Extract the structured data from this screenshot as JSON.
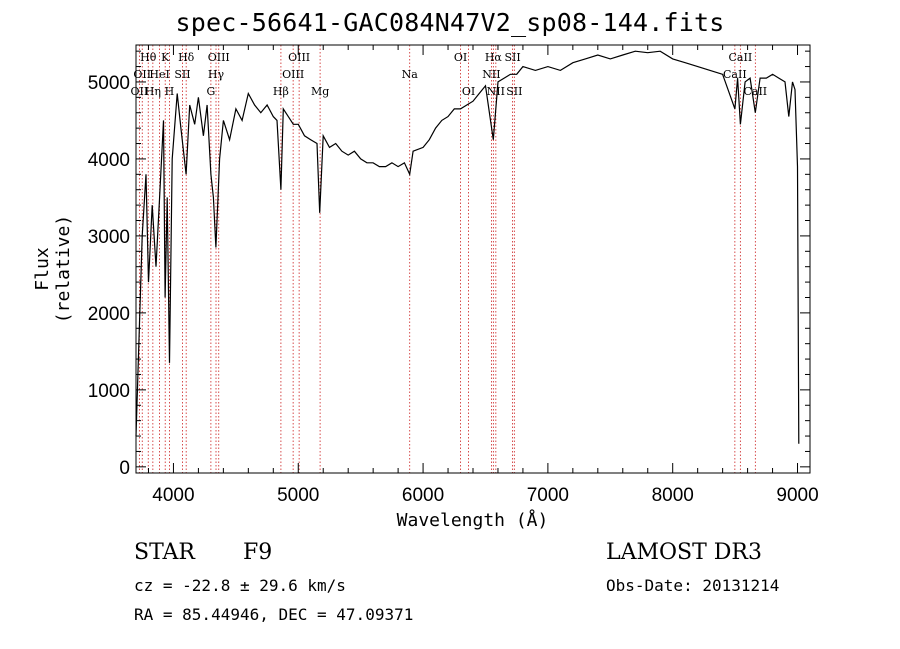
{
  "title": "spec-56641-GAC084N47V2_sp08-144.fits",
  "info": {
    "class": "STAR",
    "subclass": "F9",
    "survey": "LAMOST DR3",
    "cz": "cz = -22.8 ± 29.6 km/s",
    "obs_date": "Obs-Date: 20131214",
    "radec": "RA =  85.44946, DEC =  47.09371"
  },
  "colors": {
    "spectrum": "#000000",
    "lines": "#cc2222",
    "axes": "#000000"
  },
  "chart_data": {
    "type": "line",
    "xlabel": "Wavelength (Å)",
    "ylabel": "Flux (relative)",
    "xlim": [
      3700,
      9100
    ],
    "ylim": [
      -80,
      5480
    ],
    "xticks": [
      4000,
      5000,
      6000,
      7000,
      8000,
      9000
    ],
    "yticks": [
      0,
      1000,
      2000,
      3000,
      4000,
      5000
    ],
    "spectrum": [
      [
        3700,
        400
      ],
      [
        3750,
        3000
      ],
      [
        3780,
        3800
      ],
      [
        3800,
        2400
      ],
      [
        3830,
        3400
      ],
      [
        3860,
        2600
      ],
      [
        3889,
        3500
      ],
      [
        3920,
        4500
      ],
      [
        3933,
        2200
      ],
      [
        3950,
        3500
      ],
      [
        3968,
        1350
      ],
      [
        3990,
        4000
      ],
      [
        4030,
        4850
      ],
      [
        4060,
        4400
      ],
      [
        4101,
        3800
      ],
      [
        4130,
        4700
      ],
      [
        4170,
        4450
      ],
      [
        4200,
        4800
      ],
      [
        4240,
        4300
      ],
      [
        4270,
        4700
      ],
      [
        4300,
        3800
      ],
      [
        4320,
        3500
      ],
      [
        4340,
        2850
      ],
      [
        4370,
        4000
      ],
      [
        4400,
        4500
      ],
      [
        4450,
        4250
      ],
      [
        4500,
        4650
      ],
      [
        4550,
        4500
      ],
      [
        4600,
        4850
      ],
      [
        4650,
        4700
      ],
      [
        4700,
        4600
      ],
      [
        4750,
        4700
      ],
      [
        4800,
        4550
      ],
      [
        4830,
        4500
      ],
      [
        4861,
        3600
      ],
      [
        4880,
        4650
      ],
      [
        4920,
        4550
      ],
      [
        4960,
        4450
      ],
      [
        5000,
        4450
      ],
      [
        5050,
        4300
      ],
      [
        5100,
        4250
      ],
      [
        5150,
        4200
      ],
      [
        5172,
        3300
      ],
      [
        5200,
        4300
      ],
      [
        5250,
        4150
      ],
      [
        5300,
        4200
      ],
      [
        5350,
        4100
      ],
      [
        5400,
        4050
      ],
      [
        5450,
        4100
      ],
      [
        5500,
        4000
      ],
      [
        5550,
        3950
      ],
      [
        5600,
        3950
      ],
      [
        5650,
        3900
      ],
      [
        5700,
        3900
      ],
      [
        5750,
        3950
      ],
      [
        5800,
        3900
      ],
      [
        5850,
        3950
      ],
      [
        5893,
        3800
      ],
      [
        5920,
        4100
      ],
      [
        6000,
        4150
      ],
      [
        6050,
        4250
      ],
      [
        6100,
        4400
      ],
      [
        6150,
        4500
      ],
      [
        6200,
        4550
      ],
      [
        6250,
        4650
      ],
      [
        6300,
        4650
      ],
      [
        6350,
        4700
      ],
      [
        6400,
        4750
      ],
      [
        6450,
        4850
      ],
      [
        6500,
        4950
      ],
      [
        6563,
        4250
      ],
      [
        6600,
        5000
      ],
      [
        6650,
        5050
      ],
      [
        6700,
        5100
      ],
      [
        6750,
        5100
      ],
      [
        6800,
        5200
      ],
      [
        6900,
        5150
      ],
      [
        7000,
        5200
      ],
      [
        7100,
        5150
      ],
      [
        7200,
        5250
      ],
      [
        7300,
        5300
      ],
      [
        7400,
        5350
      ],
      [
        7500,
        5300
      ],
      [
        7600,
        5350
      ],
      [
        7700,
        5400
      ],
      [
        7800,
        5380
      ],
      [
        7900,
        5400
      ],
      [
        8000,
        5300
      ],
      [
        8100,
        5250
      ],
      [
        8200,
        5200
      ],
      [
        8300,
        5150
      ],
      [
        8400,
        5100
      ],
      [
        8498,
        4650
      ],
      [
        8520,
        5050
      ],
      [
        8542,
        4450
      ],
      [
        8580,
        5000
      ],
      [
        8620,
        5050
      ],
      [
        8662,
        4600
      ],
      [
        8700,
        5050
      ],
      [
        8750,
        5050
      ],
      [
        8800,
        5100
      ],
      [
        8850,
        5050
      ],
      [
        8900,
        5000
      ],
      [
        8930,
        4550
      ],
      [
        8960,
        5000
      ],
      [
        8980,
        4900
      ],
      [
        9000,
        3900
      ],
      [
        9010,
        300
      ]
    ],
    "line_markers": [
      {
        "wavelength": 3727,
        "label": "OII",
        "row": 3
      },
      {
        "wavelength": 3750,
        "label": "OII",
        "row": 2
      },
      {
        "wavelength": 3798,
        "label": "Hθ",
        "row": 1
      },
      {
        "wavelength": 3835,
        "label": "Hη",
        "row": 3
      },
      {
        "wavelength": 3889,
        "label": "HeI",
        "row": 2
      },
      {
        "wavelength": 3934,
        "label": "K",
        "row": 1
      },
      {
        "wavelength": 3968,
        "label": "H",
        "row": 3
      },
      {
        "wavelength": 4072,
        "label": "SII",
        "row": 2
      },
      {
        "wavelength": 4102,
        "label": "Hδ",
        "row": 1
      },
      {
        "wavelength": 4300,
        "label": "G",
        "row": 3
      },
      {
        "wavelength": 4341,
        "label": "Hγ",
        "row": 2
      },
      {
        "wavelength": 4363,
        "label": "OIII",
        "row": 1
      },
      {
        "wavelength": 4861,
        "label": "Hβ",
        "row": 3
      },
      {
        "wavelength": 4959,
        "label": "OIII",
        "row": 2
      },
      {
        "wavelength": 5007,
        "label": "OIII",
        "row": 1
      },
      {
        "wavelength": 5175,
        "label": "Mg",
        "row": 3
      },
      {
        "wavelength": 5893,
        "label": "Na",
        "row": 2
      },
      {
        "wavelength": 6300,
        "label": "OI",
        "row": 1
      },
      {
        "wavelength": 6364,
        "label": "OI",
        "row": 3
      },
      {
        "wavelength": 6548,
        "label": "NII",
        "row": 2
      },
      {
        "wavelength": 6563,
        "label": "Hα",
        "row": 1
      },
      {
        "wavelength": 6583,
        "label": "NII",
        "row": 3
      },
      {
        "wavelength": 6717,
        "label": "SII",
        "row": 1
      },
      {
        "wavelength": 6731,
        "label": "SII",
        "row": 3
      },
      {
        "wavelength": 8498,
        "label": "CaII",
        "row": 2
      },
      {
        "wavelength": 8542,
        "label": "CaII",
        "row": 1
      },
      {
        "wavelength": 8662,
        "label": "CaII",
        "row": 3
      }
    ]
  }
}
